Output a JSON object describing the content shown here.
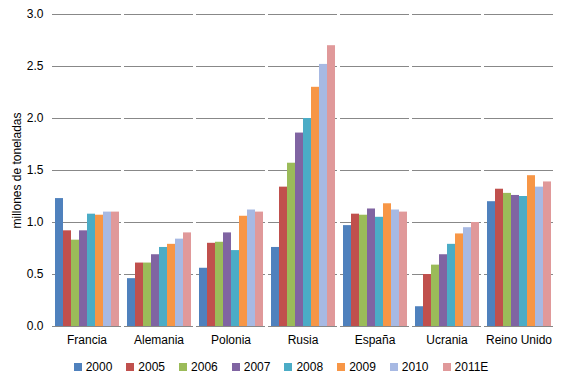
{
  "chart_data": {
    "type": "bar",
    "y_label": "millones de toneladas",
    "categories": [
      "Francia",
      "Alemania",
      "Polonia",
      "Rusia",
      "España",
      "Ucrania",
      "Reino Unido"
    ],
    "series": [
      {
        "name": "2000",
        "color": "#4f81bd",
        "values": [
          1.23,
          0.46,
          0.56,
          0.76,
          0.97,
          0.19,
          1.2
        ]
      },
      {
        "name": "2005",
        "color": "#c0504d",
        "values": [
          0.92,
          0.61,
          0.8,
          1.34,
          1.08,
          0.5,
          1.32
        ]
      },
      {
        "name": "2006",
        "color": "#9bbb59",
        "values": [
          0.83,
          0.61,
          0.81,
          1.57,
          1.07,
          0.59,
          1.28
        ]
      },
      {
        "name": "2007",
        "color": "#8064a2",
        "values": [
          0.92,
          0.69,
          0.9,
          1.86,
          1.13,
          0.69,
          1.26
        ]
      },
      {
        "name": "2008",
        "color": "#4bacc6",
        "values": [
          1.08,
          0.76,
          0.73,
          2.0,
          1.05,
          0.79,
          1.25
        ]
      },
      {
        "name": "2009",
        "color": "#f79646",
        "values": [
          1.07,
          0.79,
          1.06,
          2.3,
          1.18,
          0.89,
          1.45
        ]
      },
      {
        "name": "2010",
        "color": "#a7b9e3",
        "values": [
          1.1,
          0.84,
          1.12,
          2.52,
          1.12,
          0.95,
          1.34
        ]
      },
      {
        "name": "2011E",
        "color": "#e0999a",
        "values": [
          1.1,
          0.9,
          1.1,
          2.7,
          1.1,
          1.0,
          1.39
        ]
      }
    ],
    "ylim": [
      0,
      3
    ],
    "yticks": [
      0,
      0.5,
      1,
      1.5,
      2,
      2.5,
      3
    ],
    "grid": true,
    "legend": "bottom"
  }
}
